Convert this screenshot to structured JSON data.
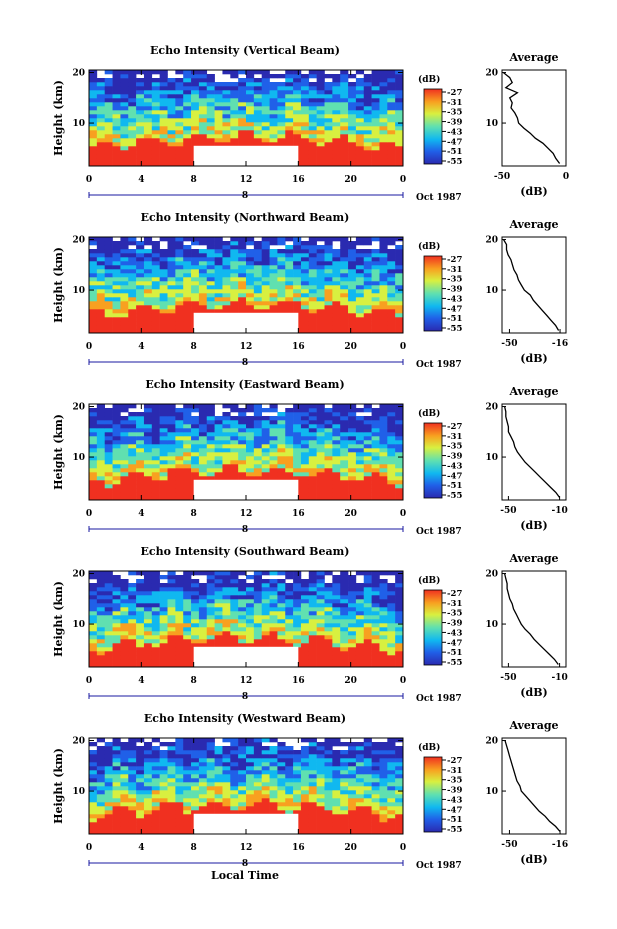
{
  "figure": {
    "xlabel": "Local Time",
    "day_label": "8",
    "month_label": "Oct 1987"
  },
  "chart_data": [
    {
      "type": "heatmap",
      "title": "Echo Intensity (Vertical Beam)",
      "xlabel": "Local Time",
      "ylabel": "Height (km)",
      "x_ticks": [
        "0",
        "4",
        "8",
        "12",
        "16",
        "20",
        "0"
      ],
      "y_ticks": [
        "20",
        "10"
      ],
      "xlim": [
        0,
        24
      ],
      "ylim": [
        1.5,
        20.5
      ],
      "colorbar": {
        "label": "(dB)",
        "ticks": [
          "-27",
          "-31",
          "-35",
          "-39",
          "-43",
          "-47",
          "-51",
          "-55"
        ]
      },
      "missing_data": {
        "x_range": [
          8,
          16
        ],
        "y_range": [
          1.5,
          5.5
        ]
      },
      "profile": {
        "title": "Average",
        "xlabel": "(dB)",
        "x_ticks": [
          "-50",
          "0"
        ],
        "xlim": [
          -50,
          0
        ],
        "heights": [
          2,
          3,
          4,
          5,
          6,
          7,
          8,
          9,
          10,
          11,
          12,
          13,
          14,
          15,
          16,
          17,
          18,
          19,
          20
        ],
        "values": [
          -5,
          -8,
          -10,
          -14,
          -18,
          -24,
          -28,
          -33,
          -37,
          -38,
          -40,
          -43,
          -42,
          -44,
          -38,
          -47,
          -42,
          -44,
          -49
        ]
      }
    },
    {
      "type": "heatmap",
      "title": "Echo Intensity (Northward Beam)",
      "xlabel": "Local Time",
      "ylabel": "Height (km)",
      "x_ticks": [
        "0",
        "4",
        "8",
        "12",
        "16",
        "20",
        "0"
      ],
      "y_ticks": [
        "20",
        "10"
      ],
      "xlim": [
        0,
        24
      ],
      "ylim": [
        1.5,
        20.5
      ],
      "colorbar": {
        "label": "(dB)",
        "ticks": [
          "-27",
          "-31",
          "-35",
          "-39",
          "-43",
          "-47",
          "-51",
          "-55"
        ]
      },
      "missing_data": {
        "x_range": [
          8,
          16
        ],
        "y_range": [
          1.5,
          5.5
        ]
      },
      "profile": {
        "title": "Average",
        "xlabel": "(dB)",
        "x_ticks": [
          "-50",
          "-16"
        ],
        "xlim": [
          -55,
          -12
        ],
        "heights": [
          2,
          3,
          4,
          5,
          6,
          7,
          8,
          9,
          10,
          11,
          12,
          13,
          14,
          15,
          16,
          17,
          18,
          19,
          20
        ],
        "values": [
          -17,
          -19,
          -22,
          -25,
          -28,
          -31,
          -34,
          -36,
          -40,
          -42,
          -44,
          -45,
          -47,
          -48,
          -49,
          -51,
          -52,
          -52,
          -54
        ]
      }
    },
    {
      "type": "heatmap",
      "title": "Echo Intensity (Eastward Beam)",
      "xlabel": "Local Time",
      "ylabel": "Height (km)",
      "x_ticks": [
        "0",
        "4",
        "8",
        "12",
        "16",
        "20",
        "0"
      ],
      "y_ticks": [
        "20",
        "10"
      ],
      "xlim": [
        0,
        24
      ],
      "ylim": [
        1.5,
        20.5
      ],
      "colorbar": {
        "label": "(dB)",
        "ticks": [
          "-27",
          "-31",
          "-35",
          "-39",
          "-43",
          "-47",
          "-51",
          "-55"
        ]
      },
      "missing_data": {
        "x_range": [
          8,
          16
        ],
        "y_range": [
          1.5,
          5.5
        ]
      },
      "profile": {
        "title": "Average",
        "xlabel": "(dB)",
        "x_ticks": [
          "-50",
          "-10"
        ],
        "xlim": [
          -55,
          -5
        ],
        "heights": [
          2,
          3,
          4,
          5,
          6,
          7,
          8,
          9,
          10,
          11,
          12,
          13,
          14,
          15,
          16,
          17,
          18,
          19,
          20
        ],
        "values": [
          -10,
          -13,
          -17,
          -21,
          -25,
          -29,
          -33,
          -37,
          -40,
          -43,
          -45,
          -46,
          -48,
          -50,
          -50,
          -51,
          -52,
          -52,
          -53
        ]
      }
    },
    {
      "type": "heatmap",
      "title": "Echo Intensity (Southward Beam)",
      "xlabel": "Local Time",
      "ylabel": "Height (km)",
      "x_ticks": [
        "0",
        "4",
        "8",
        "12",
        "16",
        "20",
        "0"
      ],
      "y_ticks": [
        "20",
        "10"
      ],
      "xlim": [
        0,
        24
      ],
      "ylim": [
        1.5,
        20.5
      ],
      "colorbar": {
        "label": "(dB)",
        "ticks": [
          "-27",
          "-31",
          "-35",
          "-39",
          "-43",
          "-47",
          "-51",
          "-55"
        ]
      },
      "missing_data": {
        "x_range": [
          8,
          16
        ],
        "y_range": [
          1.5,
          5.5
        ]
      },
      "profile": {
        "title": "Average",
        "xlabel": "(dB)",
        "x_ticks": [
          "-50",
          "-10"
        ],
        "xlim": [
          -55,
          -5
        ],
        "heights": [
          2,
          3,
          4,
          5,
          6,
          7,
          8,
          9,
          10,
          11,
          12,
          13,
          14,
          15,
          16,
          17,
          18,
          19,
          20
        ],
        "values": [
          -11,
          -14,
          -18,
          -22,
          -26,
          -30,
          -33,
          -37,
          -40,
          -42,
          -44,
          -46,
          -47,
          -49,
          -50,
          -51,
          -51,
          -52,
          -53
        ]
      }
    },
    {
      "type": "heatmap",
      "title": "Echo Intensity (Westward Beam)",
      "xlabel": "Local Time",
      "ylabel": "Height (km)",
      "x_ticks": [
        "0",
        "4",
        "8",
        "12",
        "16",
        "20",
        "0"
      ],
      "y_ticks": [
        "20",
        "10"
      ],
      "xlim": [
        0,
        24
      ],
      "ylim": [
        1.5,
        20.5
      ],
      "colorbar": {
        "label": "(dB)",
        "ticks": [
          "-27",
          "-31",
          "-35",
          "-39",
          "-43",
          "-47",
          "-51",
          "-55"
        ]
      },
      "missing_data": {
        "x_range": [
          8,
          16
        ],
        "y_range": [
          1.5,
          5.5
        ]
      },
      "profile": {
        "title": "Average",
        "xlabel": "(dB)",
        "x_ticks": [
          "-50",
          "-16"
        ],
        "xlim": [
          -55,
          -12
        ],
        "heights": [
          2,
          3,
          4,
          5,
          6,
          7,
          8,
          9,
          10,
          11,
          12,
          13,
          14,
          15,
          16,
          17,
          18,
          19,
          20
        ],
        "values": [
          -16,
          -19,
          -23,
          -26,
          -30,
          -33,
          -36,
          -39,
          -42,
          -43,
          -45,
          -46,
          -47,
          -48,
          -49,
          -50,
          -51,
          -52,
          -53
        ]
      }
    }
  ]
}
